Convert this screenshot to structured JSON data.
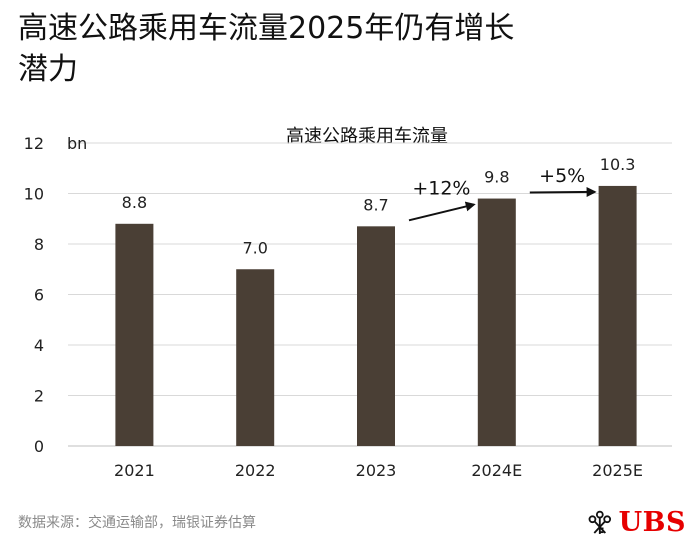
{
  "headline": {
    "line1": "高速公路乘用车流量2025年仍有增长",
    "line2": "潜力"
  },
  "chart_data": {
    "type": "bar",
    "title": "高速公路乘用车流量",
    "unit_label": "bn",
    "categories": [
      "2021",
      "2022",
      "2023",
      "2024E",
      "2025E"
    ],
    "values": [
      8.8,
      7.0,
      8.7,
      9.8,
      10.3
    ],
    "value_labels": [
      "8.8",
      "7.0",
      "8.7",
      "9.8",
      "10.3"
    ],
    "ylim": [
      0,
      12
    ],
    "yticks": [
      0,
      2,
      4,
      6,
      8,
      10,
      12
    ],
    "grid": true,
    "growth_annotations": [
      {
        "from": "2023",
        "to": "2024E",
        "label": "+12%"
      },
      {
        "from": "2024E",
        "to": "2025E",
        "label": "+5%"
      }
    ],
    "bar_color": "#4a3f35"
  },
  "footer": {
    "source": "数据来源：交通运输部，瑞银证券估算"
  },
  "logo": {
    "text": "UBS",
    "color": "#e60000"
  }
}
